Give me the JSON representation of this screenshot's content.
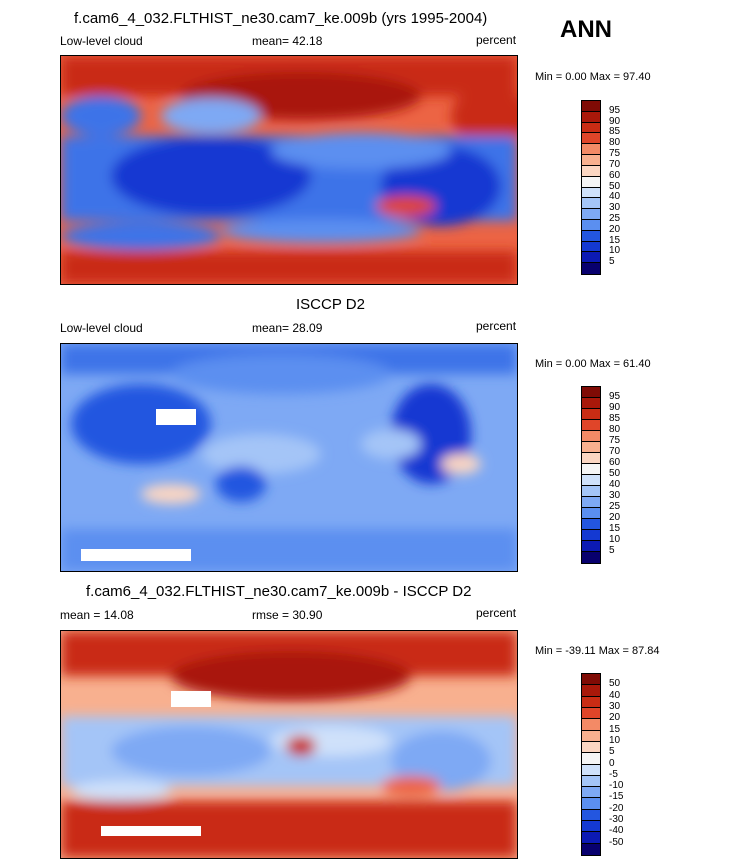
{
  "season": "ANN",
  "palette_seq": [
    "#08006e",
    "#0c1ab4",
    "#1439d2",
    "#2356e0",
    "#3e73e8",
    "#5b8ff0",
    "#7ea9f4",
    "#a4c5f7",
    "#cfe1fa",
    "#f5f5f5",
    "#fbd6c2",
    "#f8b08f",
    "#f38a66",
    "#ec6444",
    "#e04529",
    "#c92c14",
    "#a9180a",
    "#7f0b05"
  ],
  "palette_div": [
    "#08006e",
    "#0c1ab4",
    "#1439d2",
    "#2356e0",
    "#3e73e8",
    "#5b8ff0",
    "#7ea9f4",
    "#a4c5f7",
    "#cfe1fa",
    "#f5f5f5",
    "#fbd6c2",
    "#f8b08f",
    "#f38a66",
    "#ec6444",
    "#e04529",
    "#c92c14",
    "#a9180a",
    "#7f0b05"
  ],
  "panels": [
    {
      "title": "f.cam6_4_032.FLTHIST_ne30.cam7_ke.009b (yrs 1995-2004)",
      "left_label": "Low-level cloud",
      "center_label": "mean=  42.18",
      "right_label": "percent",
      "minmax": "Min =   0.00 Max =  97.40",
      "colorbar_levels": [
        "95",
        "90",
        "85",
        "80",
        "75",
        "70",
        "60",
        "50",
        "40",
        "30",
        "25",
        "20",
        "15",
        "10",
        "5"
      ]
    },
    {
      "title": "ISCCP D2",
      "left_label": "Low-level cloud",
      "center_label": "mean=  28.09",
      "right_label": "percent",
      "minmax": "Min =   0.00 Max =  61.40",
      "colorbar_levels": [
        "95",
        "90",
        "85",
        "80",
        "75",
        "70",
        "60",
        "50",
        "40",
        "30",
        "25",
        "20",
        "15",
        "10",
        "5"
      ]
    },
    {
      "title": "f.cam6_4_032.FLTHIST_ne30.cam7_ke.009b - ISCCP D2",
      "left_label": "mean =  14.08",
      "center_label": "rmse =  30.90",
      "right_label": "percent",
      "minmax": "Min = -39.11 Max =  87.84",
      "colorbar_levels": [
        "50",
        "40",
        "30",
        "20",
        "15",
        "10",
        "5",
        "0",
        "-5",
        "-10",
        "-15",
        "-20",
        "-30",
        "-40",
        "-50"
      ]
    }
  ]
}
